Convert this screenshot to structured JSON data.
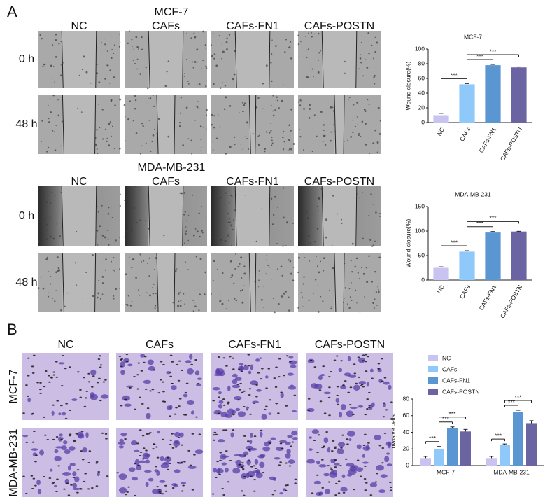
{
  "panel_a": {
    "label": "A",
    "groups": [
      {
        "title": "MCF-7",
        "columns": [
          "NC",
          "CAFs",
          "CAFs-FN1",
          "CAFs-POSTN"
        ],
        "rows": [
          "0 h",
          "48 h"
        ]
      },
      {
        "title": "MDA-MB-231",
        "columns": [
          "NC",
          "CAFs",
          "CAFs-FN1",
          "CAFs-POSTN"
        ],
        "rows": [
          "0 h",
          "48 h"
        ]
      }
    ]
  },
  "panel_b": {
    "label": "B",
    "columns": [
      "NC",
      "CAFs",
      "CAFs-FN1",
      "CAFs-POSTN"
    ],
    "rows": [
      "MCF-7",
      "MDA-MB-231"
    ]
  },
  "chart_data": [
    {
      "type": "bar",
      "title": "MCF-7",
      "y_label": "Wound closure(%)",
      "categories": [
        "NC",
        "CAFs",
        "CAFs-FN1",
        "CAFs-POSTN"
      ],
      "values": [
        10,
        52,
        78,
        75
      ],
      "errors": [
        2.5,
        1,
        1,
        0.8
      ],
      "colors": [
        "#c9c3f2",
        "#8ec9f9",
        "#5a96d2",
        "#6b64a3"
      ],
      "ylim": [
        0,
        100
      ],
      "yticks": [
        0,
        20,
        40,
        60,
        80,
        100
      ],
      "annotations": [
        {
          "text": "***",
          "between": [
            "NC",
            "CAFs"
          ]
        },
        {
          "text": "***",
          "between": [
            "CAFs",
            "CAFs-FN1"
          ]
        },
        {
          "text": "***",
          "between": [
            "CAFs",
            "CAFs-POSTN"
          ]
        }
      ]
    },
    {
      "type": "bar",
      "title": "MDA-MB-231",
      "y_label": "Wound closure(%)",
      "categories": [
        "NC",
        "CAFs",
        "CAFs-FN1",
        "CAFs-POSTN"
      ],
      "values": [
        25,
        58,
        97,
        99
      ],
      "errors": [
        2,
        2,
        2,
        0.5
      ],
      "colors": [
        "#c9c3f2",
        "#8ec9f9",
        "#5a96d2",
        "#6b64a3"
      ],
      "ylim": [
        0,
        150
      ],
      "yticks": [
        0,
        50,
        100,
        150
      ],
      "annotations": [
        {
          "text": "***",
          "between": [
            "NC",
            "CAFs"
          ]
        },
        {
          "text": "***",
          "between": [
            "CAFs",
            "CAFs-FN1"
          ]
        },
        {
          "text": "***",
          "between": [
            "CAFs",
            "CAFs-POSTN"
          ]
        }
      ]
    },
    {
      "type": "grouped_bar",
      "y_label": "Invasive cells",
      "legend": "top",
      "categories": [
        "MCF-7",
        "MDA-MB-231"
      ],
      "series": [
        {
          "name": "NC",
          "color": "#c9c3f2",
          "values": [
            9,
            9
          ],
          "errors": [
            2,
            2
          ]
        },
        {
          "name": "CAFs",
          "color": "#8ec9f9",
          "values": [
            20,
            25
          ],
          "errors": [
            3,
            1
          ]
        },
        {
          "name": "CAFs-FN1",
          "color": "#5a96d2",
          "values": [
            45,
            64
          ],
          "errors": [
            1.5,
            2.5
          ]
        },
        {
          "name": "CAFs-POSTN",
          "color": "#6b64a3",
          "values": [
            41,
            51
          ],
          "errors": [
            2.5,
            3
          ]
        }
      ],
      "ylim": [
        0,
        80
      ],
      "yticks": [
        0,
        20,
        40,
        60,
        80
      ],
      "annotations": [
        {
          "text": "***",
          "group": "MCF-7",
          "between": [
            "NC",
            "CAFs"
          ]
        },
        {
          "text": "***",
          "group": "MCF-7",
          "between": [
            "CAFs",
            "CAFs-FN1"
          ]
        },
        {
          "text": "***",
          "group": "MCF-7",
          "between": [
            "CAFs",
            "CAFs-POSTN"
          ]
        },
        {
          "text": "***",
          "group": "MDA-MB-231",
          "between": [
            "NC",
            "CAFs"
          ]
        },
        {
          "text": "***",
          "group": "MDA-MB-231",
          "between": [
            "CAFs",
            "CAFs-FN1"
          ]
        },
        {
          "text": "***",
          "group": "MDA-MB-231",
          "between": [
            "CAFs",
            "CAFs-POSTN"
          ]
        }
      ]
    }
  ]
}
